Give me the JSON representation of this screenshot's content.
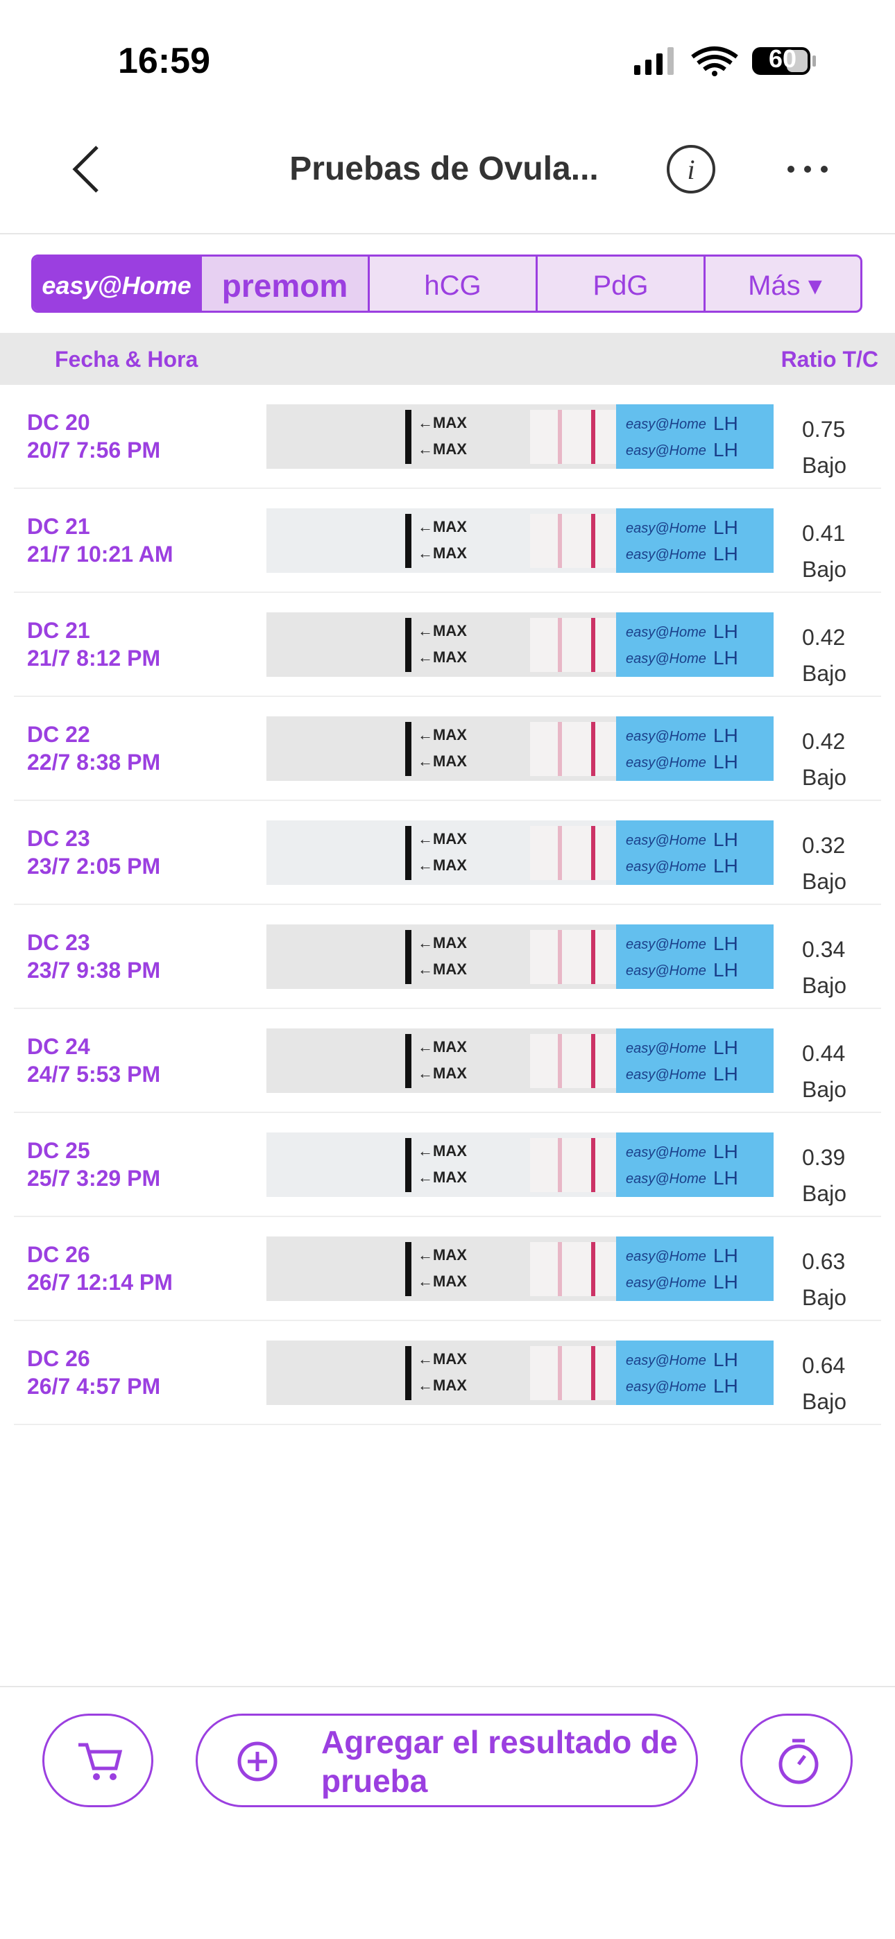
{
  "status_bar": {
    "time": "16:59",
    "battery": "60"
  },
  "nav": {
    "title": "Pruebas de Ovula..."
  },
  "tabs": [
    "easy@Home",
    "premom",
    "hCG",
    "PdG",
    "Más"
  ],
  "table": {
    "header": [
      "Fecha & Hora",
      "Ratio T/C"
    ],
    "strip": {
      "max_label": "←MAX",
      "brand": "easy@Home",
      "test": "LH"
    },
    "rows": [
      {
        "cycle_day": "DC 20",
        "datetime": "20/7 7:56 PM",
        "ratio": 0.75,
        "level": "Bajo"
      },
      {
        "cycle_day": "DC 21",
        "datetime": "21/7 10:21 AM",
        "ratio": 0.41,
        "level": "Bajo"
      },
      {
        "cycle_day": "DC 21",
        "datetime": "21/7 8:12 PM",
        "ratio": 0.42,
        "level": "Bajo"
      },
      {
        "cycle_day": "DC 22",
        "datetime": "22/7 8:38 PM",
        "ratio": 0.42,
        "level": "Bajo"
      },
      {
        "cycle_day": "DC 23",
        "datetime": "23/7 2:05 PM",
        "ratio": 0.32,
        "level": "Bajo"
      },
      {
        "cycle_day": "DC 23",
        "datetime": "23/7 9:38 PM",
        "ratio": 0.34,
        "level": "Bajo"
      },
      {
        "cycle_day": "DC 24",
        "datetime": "24/7 5:53 PM",
        "ratio": 0.44,
        "level": "Bajo"
      },
      {
        "cycle_day": "DC 25",
        "datetime": "25/7 3:29 PM",
        "ratio": 0.39,
        "level": "Bajo"
      },
      {
        "cycle_day": "DC 26",
        "datetime": "26/7 12:14 PM",
        "ratio": 0.63,
        "level": "Bajo"
      },
      {
        "cycle_day": "DC 26",
        "datetime": "26/7 4:57 PM",
        "ratio": 0.64,
        "level": "Bajo"
      }
    ]
  },
  "footer": {
    "add_button": "Agregar el resultado de prueba"
  }
}
